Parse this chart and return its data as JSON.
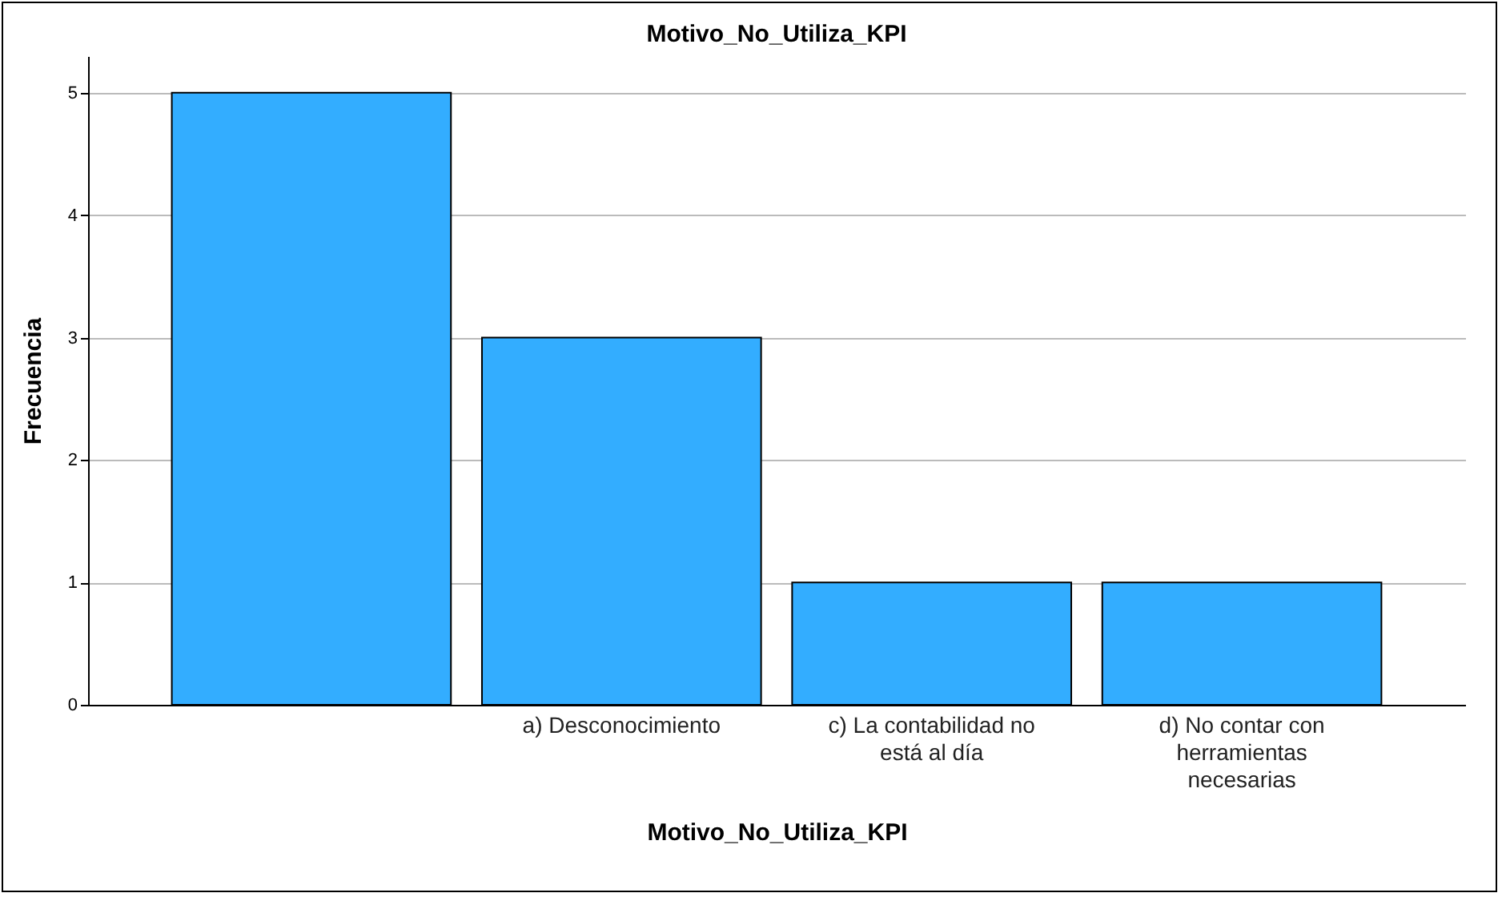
{
  "chart_data": {
    "type": "bar",
    "title": "Motivo_No_Utiliza_KPI",
    "xlabel": "Motivo_No_Utiliza_KPI",
    "ylabel": "Frecuencia",
    "categories": [
      null,
      "a) Desconocimiento",
      "c) La contabilidad no está al día",
      "d) No contar con herramientas necesarias"
    ],
    "values": [
      5,
      3,
      1,
      1
    ],
    "color": "#33adff",
    "ylim": [
      0,
      5.3
    ],
    "yticks": [
      0,
      1,
      2,
      3,
      4,
      5
    ],
    "grid": "y"
  }
}
